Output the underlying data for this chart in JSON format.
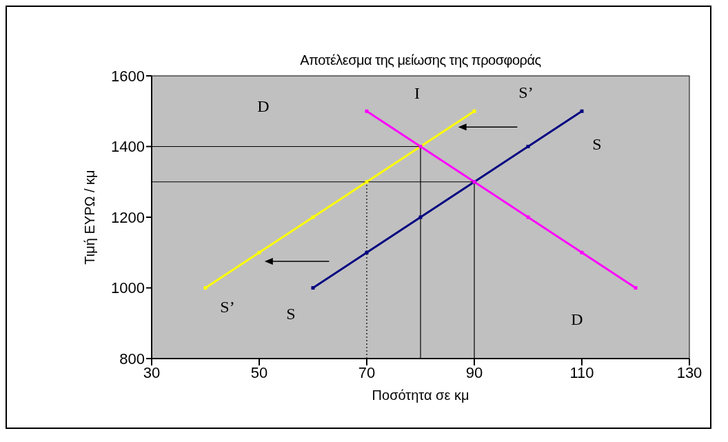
{
  "chart_data": {
    "type": "line",
    "title": "Αποτέλεσμα της μείωσης της προσφοράς",
    "xlabel": "Ποσότητα σε κμ",
    "ylabel": "Τιμή ΕΥΡΩ / κμ",
    "xlim": [
      30,
      130
    ],
    "xticks": [
      30,
      50,
      70,
      90,
      110,
      130
    ],
    "ylim": [
      800,
      1600
    ],
    "yticks": [
      800,
      1000,
      1200,
      1400,
      1600
    ],
    "marker": "square",
    "line_style": "solid",
    "series": [
      {
        "name": "S’",
        "color": "#ffff00",
        "x": [
          40,
          50,
          60,
          70,
          80,
          90
        ],
        "values": [
          1000,
          1100,
          1200,
          1300,
          1400,
          1500
        ]
      },
      {
        "name": "S",
        "color": "#000080",
        "x": [
          60,
          70,
          80,
          90,
          100,
          110
        ],
        "values": [
          1000,
          1100,
          1200,
          1300,
          1400,
          1500
        ]
      },
      {
        "name": "D",
        "color": "#ff00ff",
        "x": [
          70,
          80,
          90,
          100,
          110,
          120
        ],
        "values": [
          1500,
          1400,
          1300,
          1200,
          1100,
          1000
        ]
      },
      {
        "color": "#000000",
        "marker": "none",
        "x": [
          30,
          80
        ],
        "values": [
          1400,
          1400
        ]
      },
      {
        "color": "#000000",
        "marker": "none",
        "x": [
          30,
          90
        ],
        "values": [
          1300,
          1300
        ]
      },
      {
        "color": "#000000",
        "marker": "none",
        "line_style": "dotted",
        "x": [
          70,
          70
        ],
        "values": [
          800,
          1300
        ]
      },
      {
        "color": "#000000",
        "marker": "none",
        "x": [
          80,
          80
        ],
        "values": [
          800,
          1400
        ]
      },
      {
        "color": "#000000",
        "marker": "none",
        "x": [
          90,
          90
        ],
        "values": [
          800,
          1300
        ]
      }
    ],
    "annotations": [
      {
        "text": "I",
        "x": 80,
        "y": 1400
      }
    ]
  }
}
